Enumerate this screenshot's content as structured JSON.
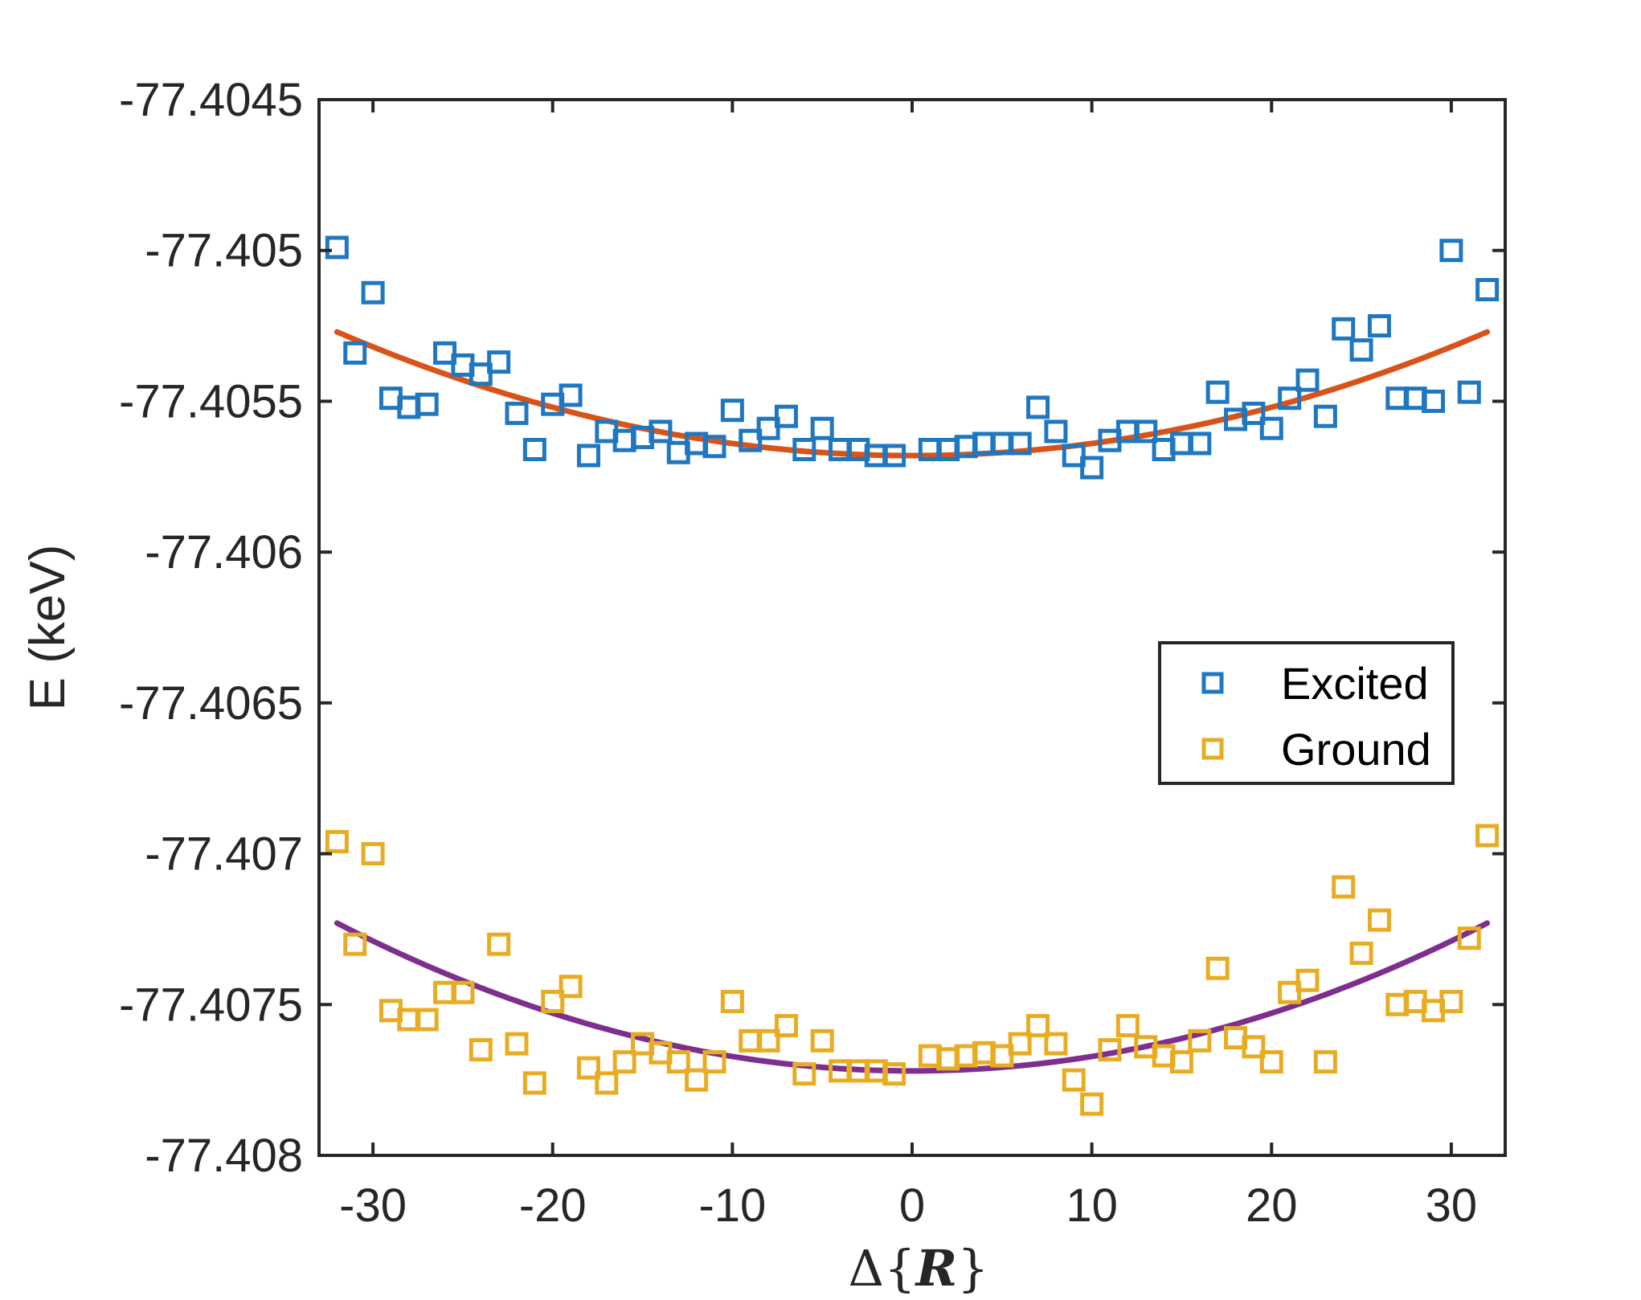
{
  "chart_data": {
    "type": "scatter",
    "title": "",
    "xlabel": "Δ{R}",
    "xlabel_parts": {
      "prefix": "Δ{",
      "symbol": "R",
      "suffix": "}"
    },
    "ylabel": "E (keV)",
    "xlim": [
      -33,
      33
    ],
    "ylim": [
      -77.408,
      -77.4045
    ],
    "xticks": [
      -30,
      -20,
      -10,
      0,
      10,
      20,
      30
    ],
    "xtick_labels": [
      "-30",
      "-20",
      "-10",
      "0",
      "10",
      "20",
      "30"
    ],
    "yticks": [
      -77.4045,
      -77.405,
      -77.4055,
      -77.406,
      -77.4065,
      -77.407,
      -77.4075,
      -77.408
    ],
    "ytick_labels": [
      "-77.4045",
      "-77.405",
      "-77.4055",
      "-77.406",
      "-77.4065",
      "-77.407",
      "-77.4075",
      "-77.408"
    ],
    "grid": false,
    "legend_position": "right",
    "colors": {
      "excited": "#1f77c0",
      "ground": "#e8ac22",
      "excited_fit": "#d95319",
      "ground_fit": "#7e2f8e",
      "axis": "#262626"
    },
    "series": [
      {
        "name": "Excited",
        "marker": "square",
        "x": [
          -32,
          -31,
          -30,
          -29,
          -28,
          -27,
          -26,
          -25,
          -24,
          -23,
          -22,
          -21,
          -20,
          -19,
          -18,
          -17,
          -16,
          -15,
          -14,
          -13,
          -12,
          -11,
          -10,
          -9,
          -8,
          -7,
          -6,
          -5,
          -4,
          -3,
          -2,
          -1,
          1,
          2,
          3,
          4,
          5,
          6,
          7,
          8,
          9,
          10,
          11,
          12,
          13,
          14,
          15,
          16,
          17,
          18,
          19,
          20,
          21,
          22,
          23,
          24,
          25,
          26,
          27,
          28,
          29,
          30,
          31,
          32
        ],
        "values": [
          -77.40499,
          -77.40534,
          -77.40514,
          -77.40549,
          -77.40552,
          -77.40551,
          -77.40534,
          -77.40538,
          -77.40541,
          -77.40537,
          -77.40554,
          -77.40566,
          -77.40551,
          -77.40548,
          -77.40568,
          -77.4056,
          -77.40563,
          -77.40562,
          -77.4056,
          -77.40567,
          -77.40564,
          -77.40565,
          -77.40553,
          -77.40563,
          -77.40559,
          -77.40555,
          -77.40566,
          -77.40559,
          -77.40566,
          -77.40566,
          -77.40568,
          -77.40568,
          -77.40566,
          -77.40566,
          -77.40565,
          -77.40564,
          -77.40564,
          -77.40564,
          -77.40552,
          -77.4056,
          -77.40568,
          -77.40572,
          -77.40563,
          -77.4056,
          -77.4056,
          -77.40566,
          -77.40564,
          -77.40564,
          -77.40547,
          -77.40556,
          -77.40554,
          -77.40559,
          -77.40549,
          -77.40543,
          -77.40555,
          -77.40526,
          -77.40533,
          -77.40525,
          -77.40549,
          -77.40549,
          -77.4055,
          -77.405,
          -77.40547,
          -77.40513
        ]
      },
      {
        "name": "Ground",
        "marker": "square",
        "x": [
          -32,
          -31,
          -30,
          -29,
          -28,
          -27,
          -26,
          -25,
          -24,
          -23,
          -22,
          -21,
          -20,
          -19,
          -18,
          -17,
          -16,
          -15,
          -14,
          -13,
          -12,
          -11,
          -10,
          -9,
          -8,
          -7,
          -6,
          -5,
          -4,
          -3,
          -2,
          -1,
          1,
          2,
          3,
          4,
          5,
          6,
          7,
          8,
          9,
          10,
          11,
          12,
          13,
          14,
          15,
          16,
          17,
          18,
          19,
          20,
          21,
          22,
          23,
          24,
          25,
          26,
          27,
          28,
          29,
          30,
          31,
          32
        ],
        "values": [
          -77.40696,
          -77.4073,
          -77.407,
          -77.40752,
          -77.40755,
          -77.40755,
          -77.40746,
          -77.40746,
          -77.40765,
          -77.4073,
          -77.40763,
          -77.40776,
          -77.40749,
          -77.40744,
          -77.40771,
          -77.40776,
          -77.40769,
          -77.40763,
          -77.40766,
          -77.40769,
          -77.40775,
          -77.40769,
          -77.40749,
          -77.40762,
          -77.40762,
          -77.40757,
          -77.40773,
          -77.40762,
          -77.40772,
          -77.40772,
          -77.40772,
          -77.40773,
          -77.40767,
          -77.40768,
          -77.40767,
          -77.40766,
          -77.40767,
          -77.40763,
          -77.40757,
          -77.40763,
          -77.40775,
          -77.40783,
          -77.40765,
          -77.40757,
          -77.40764,
          -77.40767,
          -77.40769,
          -77.40762,
          -77.40738,
          -77.40761,
          -77.40764,
          -77.40769,
          -77.40746,
          -77.40742,
          -77.40769,
          -77.40711,
          -77.40733,
          -77.40722,
          -77.4075,
          -77.40749,
          -77.40752,
          -77.40749,
          -77.40728,
          -77.40694
        ]
      }
    ],
    "fits": [
      {
        "name": "Excited fit",
        "x_range": [
          -32,
          32
        ],
        "vertex_x": 0,
        "vertex_y": -77.40568,
        "edge_y": -77.40527
      },
      {
        "name": "Ground fit",
        "x_range": [
          -32,
          32
        ],
        "vertex_x": 0,
        "vertex_y": -77.40772,
        "edge_y": -77.40723
      }
    ],
    "legend": [
      "Excited",
      "Ground"
    ]
  }
}
